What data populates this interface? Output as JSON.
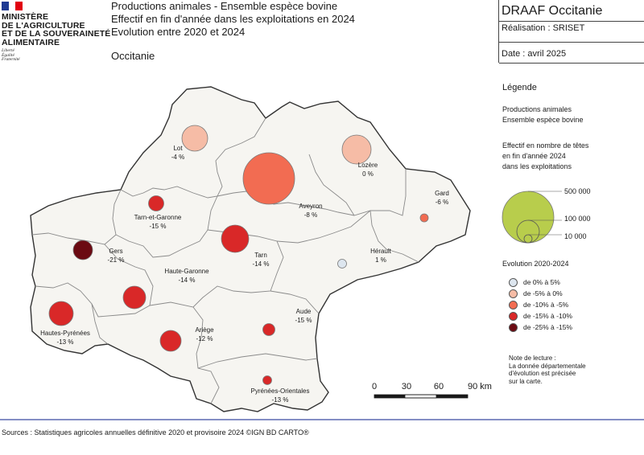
{
  "header": {
    "ministry_lines": [
      "MINISTÈRE",
      "DE L'AGRICULTURE",
      "ET DE LA SOUVERAINETÉ",
      "ALIMENTAIRE"
    ],
    "motto": [
      "Liberté",
      "Égalité",
      "Fraternité"
    ],
    "title_lines": [
      "Productions animales - Ensemble espèce bovine",
      "Effectif en fin d'année dans les exploitations en 2024",
      "Evolution entre 2020 et 2024"
    ],
    "region": "Occitanie",
    "org": "DRAAF Occitanie",
    "realisation": "Réalisation : SRISET",
    "date": "Date : avril 2025"
  },
  "legend": {
    "title": "Légende",
    "theme_lines": [
      "Productions animales",
      "Ensemble espèce bovine"
    ],
    "size_title_lines": [
      "Effectif en nombre de têtes",
      "en fin d'année 2024",
      "dans les exploitations"
    ],
    "size_labels": [
      "500 000",
      "100 000",
      "10 000"
    ],
    "size_color": "#b8cd4c",
    "evolution_title": "Evolution 2020-2024",
    "classes": [
      {
        "label": "de 0% à 5%",
        "color": "#dde6ef"
      },
      {
        "label": "de -5% à 0%",
        "color": "#f6bca6"
      },
      {
        "label": "de -10% à -5%",
        "color": "#f26c52"
      },
      {
        "label": "de -15% à -10%",
        "color": "#d92828"
      },
      {
        "label": "de -25% à -15%",
        "color": "#6b0a12"
      }
    ]
  },
  "note_lines": [
    "Note de lecture :",
    "La donnée départementale",
    "d'évolution est précisée",
    "sur la carte."
  ],
  "scalebar": {
    "labels": [
      "0",
      "30",
      "60",
      "90 km"
    ]
  },
  "departments": [
    {
      "name": "Lot",
      "value": "-4 %"
    },
    {
      "name": "Lozère",
      "value": "0 %"
    },
    {
      "name": "Aveyron",
      "value": "-8 %"
    },
    {
      "name": "Gard",
      "value": "-6 %"
    },
    {
      "name": "Tarn-et-Garonne",
      "value": "-15 %"
    },
    {
      "name": "Gers",
      "value": "-21 %"
    },
    {
      "name": "Tarn",
      "value": "-14 %"
    },
    {
      "name": "Hérault",
      "value": "1 %"
    },
    {
      "name": "Haute-Garonne",
      "value": "-14 %"
    },
    {
      "name": "Aude",
      "value": "-15 %"
    },
    {
      "name": "Hautes-Pyrénées",
      "value": "-13 %"
    },
    {
      "name": "Ariège",
      "value": "-12 %"
    },
    {
      "name": "Pyrénées-Orientales",
      "value": "-13 %"
    }
  ],
  "sources": "Sources : Statistiques agricoles annuelles définitive 2020 et provisoire 2024 ©IGN BD CARTO®"
}
